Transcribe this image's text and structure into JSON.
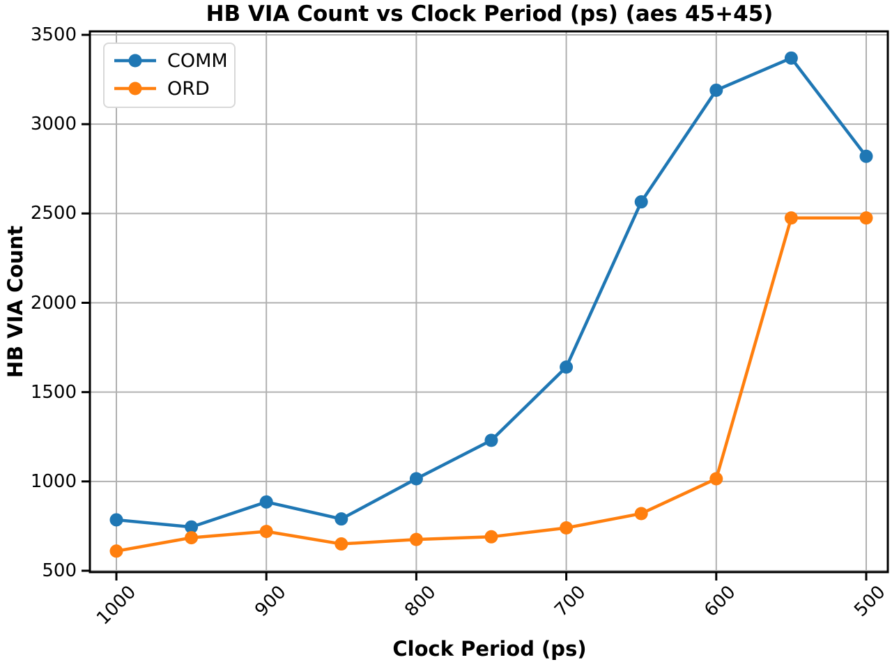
{
  "chart_data": {
    "type": "line",
    "title": "HB VIA Count vs Clock Period (ps) (aes 45+45)",
    "xlabel": "Clock Period (ps)",
    "ylabel": "HB VIA Count",
    "x": [
      1000,
      950,
      900,
      850,
      800,
      750,
      700,
      650,
      600,
      550,
      500
    ],
    "x_axis_reversed": true,
    "xticks": [
      1000,
      900,
      800,
      700,
      600,
      500
    ],
    "yticks": [
      500,
      1000,
      1500,
      2000,
      2500,
      3000,
      3500
    ],
    "xlim": [
      1017,
      486
    ],
    "ylim": [
      500,
      3500
    ],
    "grid": true,
    "grid_color": "#b0b0b0",
    "legend_position": "upper-left",
    "series": [
      {
        "name": "COMM",
        "color": "#1f77b4",
        "values": [
          785,
          745,
          885,
          790,
          1015,
          1230,
          1640,
          2565,
          3190,
          3370,
          2820
        ]
      },
      {
        "name": "ORD",
        "color": "#ff7f0e",
        "values": [
          610,
          685,
          720,
          650,
          675,
          690,
          740,
          820,
          1015,
          2475,
          2475
        ]
      }
    ]
  }
}
